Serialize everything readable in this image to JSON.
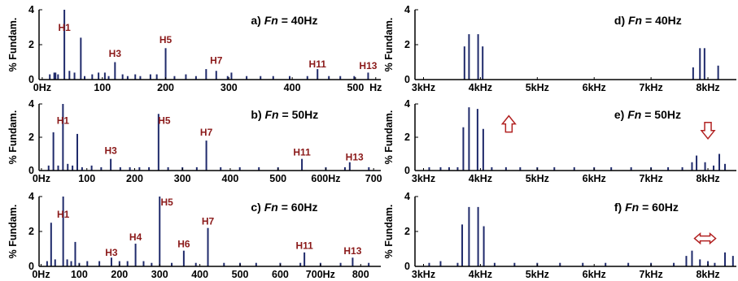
{
  "colors": {
    "bar": "#1f2a6b",
    "harmonic_label": "#8b1a1a",
    "arrow": "#b22222",
    "axis": "#000000"
  },
  "chart_data": [
    {
      "id": "a",
      "type": "bar",
      "title_prefix": "a) ",
      "title_var": "Fn",
      "title_suffix": " = 40Hz",
      "ylabel": "% Fundam.",
      "ylim": [
        0,
        4
      ],
      "yticks": [
        "0",
        "2",
        "4"
      ],
      "xlim": [
        0,
        540
      ],
      "xticks": [
        {
          "v": 5,
          "t": "0Hz"
        },
        {
          "v": 100,
          "t": "100"
        },
        {
          "v": 200,
          "t": "200"
        },
        {
          "v": 300,
          "t": "300"
        },
        {
          "v": 400,
          "t": "400"
        },
        {
          "v": 500,
          "t": "500"
        },
        {
          "v": 532,
          "t": "Hz"
        }
      ],
      "bars": [
        [
          17,
          0.3
        ],
        [
          24,
          0.4
        ],
        [
          26,
          0.4
        ],
        [
          30,
          0.3
        ],
        [
          40,
          4.0
        ],
        [
          48,
          0.5
        ],
        [
          56,
          0.4
        ],
        [
          66,
          2.4
        ],
        [
          72,
          0.2
        ],
        [
          84,
          0.3
        ],
        [
          94,
          0.4
        ],
        [
          104,
          0.4
        ],
        [
          110,
          0.2
        ],
        [
          120,
          1.0
        ],
        [
          132,
          0.3
        ],
        [
          140,
          0.2
        ],
        [
          152,
          0.3
        ],
        [
          160,
          0.2
        ],
        [
          176,
          0.3
        ],
        [
          186,
          0.3
        ],
        [
          200,
          1.8
        ],
        [
          214,
          0.2
        ],
        [
          232,
          0.3
        ],
        [
          248,
          0.2
        ],
        [
          264,
          0.6
        ],
        [
          280,
          0.5
        ],
        [
          298,
          0.2
        ],
        [
          304,
          0.4
        ],
        [
          328,
          0.2
        ],
        [
          350,
          0.2
        ],
        [
          370,
          0.2
        ],
        [
          396,
          0.2
        ],
        [
          424,
          0.2
        ],
        [
          440,
          0.6
        ],
        [
          458,
          0.2
        ],
        [
          476,
          0.2
        ],
        [
          498,
          0.2
        ],
        [
          520,
          0.4
        ]
      ],
      "harmonics": [
        {
          "label": "H1",
          "x": 40,
          "y": 2.8
        },
        {
          "label": "H3",
          "x": 120,
          "y": 1.3
        },
        {
          "label": "H5",
          "x": 200,
          "y": 2.1
        },
        {
          "label": "H7",
          "x": 280,
          "y": 0.9
        },
        {
          "label": "H11",
          "x": 440,
          "y": 0.7
        },
        {
          "label": "H13",
          "x": 520,
          "y": 0.6
        }
      ]
    },
    {
      "id": "b",
      "type": "bar",
      "title_prefix": "b) ",
      "title_var": "Fn",
      "title_suffix": " = 50Hz",
      "ylabel": "% Fundam.",
      "ylim": [
        0,
        4
      ],
      "yticks": [
        "0",
        "2",
        "4"
      ],
      "xlim": [
        0,
        715
      ],
      "xticks": [
        {
          "v": 5,
          "t": "0Hz"
        },
        {
          "v": 100,
          "t": "100"
        },
        {
          "v": 200,
          "t": "200"
        },
        {
          "v": 300,
          "t": "300"
        },
        {
          "v": 400,
          "t": "400"
        },
        {
          "v": 500,
          "t": "500"
        },
        {
          "v": 600,
          "t": "600Hz"
        },
        {
          "v": 700,
          "t": "700"
        }
      ],
      "bars": [
        [
          20,
          0.3
        ],
        [
          30,
          2.3
        ],
        [
          40,
          0.3
        ],
        [
          50,
          4.0
        ],
        [
          60,
          0.4
        ],
        [
          70,
          0.3
        ],
        [
          80,
          2.2
        ],
        [
          90,
          0.2
        ],
        [
          110,
          0.3
        ],
        [
          130,
          0.2
        ],
        [
          150,
          0.7
        ],
        [
          170,
          0.2
        ],
        [
          190,
          0.2
        ],
        [
          210,
          0.2
        ],
        [
          230,
          0.2
        ],
        [
          250,
          3.4
        ],
        [
          270,
          0.2
        ],
        [
          300,
          0.2
        ],
        [
          330,
          0.2
        ],
        [
          350,
          1.8
        ],
        [
          380,
          0.2
        ],
        [
          420,
          0.2
        ],
        [
          460,
          0.2
        ],
        [
          500,
          0.2
        ],
        [
          550,
          0.7
        ],
        [
          600,
          0.2
        ],
        [
          640,
          0.2
        ],
        [
          650,
          0.5
        ],
        [
          690,
          0.2
        ]
      ],
      "harmonics": [
        {
          "label": "H1",
          "x": 50,
          "y": 2.8
        },
        {
          "label": "H3",
          "x": 150,
          "y": 1.0
        },
        {
          "label": "H5",
          "x": 262,
          "y": 2.8
        },
        {
          "label": "H7",
          "x": 350,
          "y": 2.1
        },
        {
          "label": "H11",
          "x": 550,
          "y": 0.9
        },
        {
          "label": "H13",
          "x": 660,
          "y": 0.6
        }
      ]
    },
    {
      "id": "c",
      "type": "bar",
      "title_prefix": "c) ",
      "title_var": "Fn",
      "title_suffix": " = 60Hz",
      "ylabel": "% Fundam.",
      "ylim": [
        0,
        4
      ],
      "yticks": [
        "0",
        "2",
        "4"
      ],
      "xlim": [
        0,
        850
      ],
      "xticks": [
        {
          "v": 5,
          "t": "0Hz"
        },
        {
          "v": 100,
          "t": "100"
        },
        {
          "v": 200,
          "t": "200"
        },
        {
          "v": 300,
          "t": "300"
        },
        {
          "v": 400,
          "t": "400"
        },
        {
          "v": 500,
          "t": "500"
        },
        {
          "v": 600,
          "t": "600"
        },
        {
          "v": 700,
          "t": "700Hz"
        },
        {
          "v": 800,
          "t": "800"
        }
      ],
      "bars": [
        [
          20,
          0.3
        ],
        [
          30,
          2.5
        ],
        [
          40,
          0.4
        ],
        [
          60,
          4.0
        ],
        [
          70,
          0.4
        ],
        [
          80,
          0.3
        ],
        [
          90,
          1.4
        ],
        [
          100,
          0.2
        ],
        [
          120,
          0.3
        ],
        [
          150,
          0.3
        ],
        [
          180,
          0.5
        ],
        [
          200,
          0.3
        ],
        [
          220,
          0.3
        ],
        [
          240,
          1.3
        ],
        [
          260,
          0.3
        ],
        [
          280,
          0.2
        ],
        [
          300,
          4.0
        ],
        [
          330,
          0.2
        ],
        [
          360,
          0.9
        ],
        [
          390,
          0.2
        ],
        [
          420,
          2.2
        ],
        [
          460,
          0.2
        ],
        [
          500,
          0.2
        ],
        [
          540,
          0.2
        ],
        [
          600,
          0.2
        ],
        [
          650,
          0.2
        ],
        [
          660,
          0.8
        ],
        [
          700,
          0.2
        ],
        [
          750,
          0.2
        ],
        [
          780,
          0.5
        ],
        [
          820,
          0.2
        ]
      ],
      "harmonics": [
        {
          "label": "H1",
          "x": 60,
          "y": 2.8
        },
        {
          "label": "H3",
          "x": 180,
          "y": 0.6
        },
        {
          "label": "H4",
          "x": 240,
          "y": 1.5
        },
        {
          "label": "H5",
          "x": 318,
          "y": 3.5
        },
        {
          "label": "H6",
          "x": 360,
          "y": 1.1
        },
        {
          "label": "H7",
          "x": 420,
          "y": 2.4
        },
        {
          "label": "H11",
          "x": 660,
          "y": 1.0
        },
        {
          "label": "H13",
          "x": 780,
          "y": 0.7
        }
      ]
    },
    {
      "id": "d",
      "type": "bar",
      "title_prefix": "d) ",
      "title_var": "Fn",
      "title_suffix": " = 40Hz",
      "ylabel": "% Fundam.",
      "ylim": [
        0,
        4
      ],
      "yticks": [
        "0",
        "2",
        "4"
      ],
      "xlim": [
        2.85,
        8.5
      ],
      "xticks": [
        {
          "v": 3,
          "t": "3kHz"
        },
        {
          "v": 4,
          "t": "4kHz"
        },
        {
          "v": 5,
          "t": "5kHz"
        },
        {
          "v": 6,
          "t": "6kHz"
        },
        {
          "v": 7,
          "t": "7kHz"
        },
        {
          "v": 8,
          "t": "8kHz"
        }
      ],
      "bars": [
        [
          3.72,
          1.9
        ],
        [
          3.8,
          2.6
        ],
        [
          3.96,
          2.6
        ],
        [
          4.04,
          1.9
        ],
        [
          7.74,
          0.7
        ],
        [
          7.86,
          1.8
        ],
        [
          7.94,
          1.8
        ],
        [
          8.18,
          0.8
        ]
      ],
      "arrow": null
    },
    {
      "id": "e",
      "type": "bar",
      "title_prefix": "e) ",
      "title_var": "Fn",
      "title_suffix": " = 50Hz",
      "ylabel": "% Fundam.",
      "ylim": [
        0,
        4
      ],
      "yticks": [
        "0",
        "2",
        "4"
      ],
      "xlim": [
        2.85,
        8.5
      ],
      "xticks": [
        {
          "v": 3,
          "t": "3kHz"
        },
        {
          "v": 4,
          "t": "4kHz"
        },
        {
          "v": 5,
          "t": "5kHz"
        },
        {
          "v": 6,
          "t": "6kHz"
        },
        {
          "v": 7,
          "t": "7kHz"
        },
        {
          "v": 8,
          "t": "8kHz"
        }
      ],
      "bars": [
        [
          3.1,
          0.2
        ],
        [
          3.3,
          0.2
        ],
        [
          3.45,
          0.2
        ],
        [
          3.6,
          0.2
        ],
        [
          3.7,
          2.6
        ],
        [
          3.8,
          3.8
        ],
        [
          3.95,
          3.7
        ],
        [
          4.05,
          2.5
        ],
        [
          4.2,
          0.2
        ],
        [
          4.45,
          0.2
        ],
        [
          4.7,
          0.2
        ],
        [
          5.0,
          0.2
        ],
        [
          5.3,
          0.2
        ],
        [
          5.65,
          0.2
        ],
        [
          6.0,
          0.2
        ],
        [
          6.3,
          0.2
        ],
        [
          6.65,
          0.2
        ],
        [
          7.0,
          0.2
        ],
        [
          7.3,
          0.2
        ],
        [
          7.55,
          0.2
        ],
        [
          7.72,
          0.5
        ],
        [
          7.8,
          0.9
        ],
        [
          7.95,
          0.5
        ],
        [
          8.1,
          0.3
        ],
        [
          8.2,
          1.0
        ],
        [
          8.3,
          0.4
        ]
      ],
      "arrow": {
        "direction": "up",
        "x": 4.5,
        "y": 2.8
      }
    },
    {
      "id": "f",
      "type": "bar",
      "title_prefix": "f) ",
      "title_var": "Fn",
      "title_suffix": " = 60Hz",
      "ylabel": "% Fundam.",
      "ylim": [
        0,
        4
      ],
      "yticks": [
        "0",
        "2",
        "4"
      ],
      "xlim": [
        2.85,
        8.5
      ],
      "xticks": [
        {
          "v": 3,
          "t": "3kHz"
        },
        {
          "v": 4,
          "t": "4kHz"
        },
        {
          "v": 5,
          "t": "5kHz"
        },
        {
          "v": 6,
          "t": "6kHz"
        },
        {
          "v": 7,
          "t": "7kHz"
        },
        {
          "v": 8,
          "t": "8kHz"
        }
      ],
      "bars": [
        [
          3.1,
          0.2
        ],
        [
          3.3,
          0.3
        ],
        [
          3.6,
          0.2
        ],
        [
          3.68,
          2.4
        ],
        [
          3.8,
          3.4
        ],
        [
          3.96,
          3.4
        ],
        [
          4.06,
          2.3
        ],
        [
          4.25,
          0.2
        ],
        [
          4.6,
          0.2
        ],
        [
          5.0,
          0.2
        ],
        [
          5.4,
          0.2
        ],
        [
          5.8,
          0.2
        ],
        [
          6.2,
          0.2
        ],
        [
          6.6,
          0.2
        ],
        [
          7.0,
          0.2
        ],
        [
          7.4,
          0.2
        ],
        [
          7.62,
          0.6
        ],
        [
          7.72,
          0.9
        ],
        [
          7.86,
          0.4
        ],
        [
          8.0,
          0.3
        ],
        [
          8.12,
          0.2
        ],
        [
          8.3,
          0.8
        ],
        [
          8.44,
          0.6
        ]
      ],
      "arrow": null
    },
    {
      "id": "e-down",
      "type": "annotation",
      "arrow": {
        "direction": "down",
        "x": 8.0,
        "y": 2.4
      }
    },
    {
      "id": "f-lr",
      "type": "annotation",
      "arrow": {
        "direction": "left-right",
        "x": 7.95,
        "y": 1.6
      }
    }
  ]
}
